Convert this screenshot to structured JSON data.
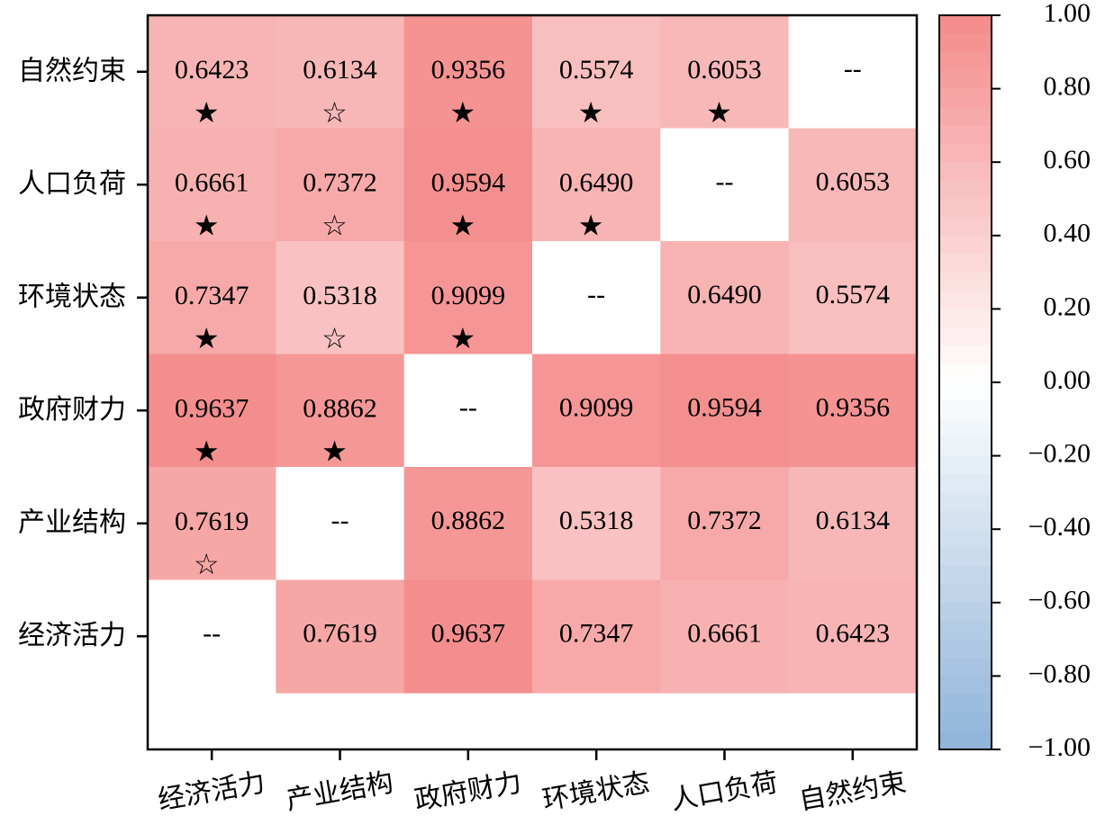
{
  "chart_data": {
    "type": "heatmap",
    "x_categories": [
      "经济活力",
      "产业结构",
      "政府财力",
      "环境状态",
      "人口负荷",
      "自然约束"
    ],
    "y_categories": [
      "自然约束",
      "人口负荷",
      "环境状态",
      "政府财力",
      "产业结构",
      "经济活力"
    ],
    "diagonal_label": "--",
    "cells": [
      [
        "0.6423",
        "0.6134",
        "0.9356",
        "0.5574",
        "0.6053",
        "--"
      ],
      [
        "0.6661",
        "0.7372",
        "0.9594",
        "0.6490",
        "--",
        "0.6053"
      ],
      [
        "0.7347",
        "0.5318",
        "0.9099",
        "--",
        "0.6490",
        "0.5574"
      ],
      [
        "0.9637",
        "0.8862",
        "--",
        "0.9099",
        "0.9594",
        "0.9356"
      ],
      [
        "0.7619",
        "--",
        "0.8862",
        "0.5318",
        "0.7372",
        "0.6134"
      ],
      [
        "--",
        "0.7619",
        "0.9637",
        "0.7347",
        "0.6661",
        "0.6423"
      ]
    ],
    "markers": [
      [
        "★",
        "☆",
        "★",
        "★",
        "★",
        ""
      ],
      [
        "★",
        "☆",
        "★",
        "★",
        "",
        ""
      ],
      [
        "★",
        "☆",
        "★",
        "",
        "",
        ""
      ],
      [
        "★",
        "★",
        "",
        "",
        "",
        ""
      ],
      [
        "☆",
        "",
        "",
        "",
        "",
        ""
      ],
      [
        "",
        "",
        "",
        "",
        "",
        ""
      ]
    ],
    "colorbar": {
      "range": [
        -1.0,
        1.0
      ],
      "ticks": [
        "1.00",
        "0.80",
        "0.60",
        "0.40",
        "0.20",
        "0.00",
        "−0.20",
        "−0.40",
        "−0.60",
        "−0.80",
        "−1.00"
      ],
      "color_max": "#f48a8a",
      "color_zero": "#ffffff",
      "color_min": "#8fb3d9"
    },
    "grid": false
  }
}
